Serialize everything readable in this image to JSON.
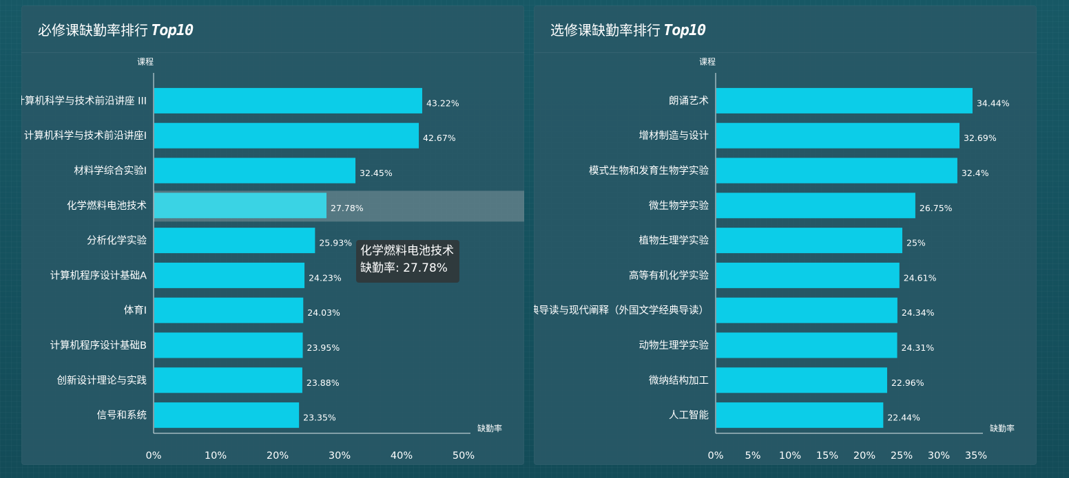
{
  "chart_data": [
    {
      "type": "bar",
      "orientation": "horizontal",
      "title": "必修课缺勤率排行",
      "title_suffix": "Top10",
      "xlabel": "缺勤率",
      "ylabel": "课程",
      "xlim": [
        0,
        50
      ],
      "x_ticks": [
        "0%",
        "10%",
        "20%",
        "30%",
        "40%",
        "50%"
      ],
      "categories": [
        "计算机科学与技术前沿讲座 III",
        "计算机科学与技术前沿讲座I",
        "材料学综合实验I",
        "化学燃料电池技术",
        "分析化学实验",
        "计算机程序设计基础A",
        "体育I",
        "计算机程序设计基础B",
        "创新设计理论与实践",
        "信号和系统"
      ],
      "values": [
        43.22,
        42.67,
        32.45,
        27.78,
        25.93,
        24.23,
        24.03,
        23.95,
        23.88,
        23.35
      ],
      "value_labels": [
        "43.22%",
        "42.67%",
        "32.45%",
        "27.78%",
        "25.93%",
        "24.23%",
        "24.03%",
        "23.95%",
        "23.88%",
        "23.35%"
      ],
      "grid": false,
      "bar_color": "#0ccde8",
      "highlight_color": "#3ad3e4",
      "hover_band_color": "rgba(210,210,210,0.28)",
      "highlight_index": 3,
      "tooltip": {
        "line1": "化学燃料电池技术",
        "line2": "缺勤率: 27.78%"
      }
    },
    {
      "type": "bar",
      "orientation": "horizontal",
      "title": "选修课缺勤率排行",
      "title_suffix": "Top10",
      "xlabel": "缺勤率",
      "ylabel": "课程",
      "xlim": [
        0,
        35
      ],
      "x_ticks": [
        "0%",
        "5%",
        "10%",
        "15%",
        "20%",
        "25%",
        "30%",
        "35%"
      ],
      "categories": [
        "朗诵艺术",
        "增材制造与设计",
        "模式生物和发育生物学实验",
        "微生物学实验",
        "植物生理学实验",
        "高等有机化学实验",
        "经典导读与现代阐释（外国文学经典导读）",
        "动物生理学实验",
        "微纳结构加工",
        "人工智能"
      ],
      "values": [
        34.44,
        32.69,
        32.4,
        26.75,
        25,
        24.61,
        24.34,
        24.31,
        22.96,
        22.44
      ],
      "value_labels": [
        "34.44%",
        "32.69%",
        "32.4%",
        "26.75%",
        "25%",
        "24.61%",
        "24.34%",
        "24.31%",
        "22.96%",
        "22.44%"
      ],
      "grid": false,
      "bar_color": "#0ccde8"
    }
  ]
}
